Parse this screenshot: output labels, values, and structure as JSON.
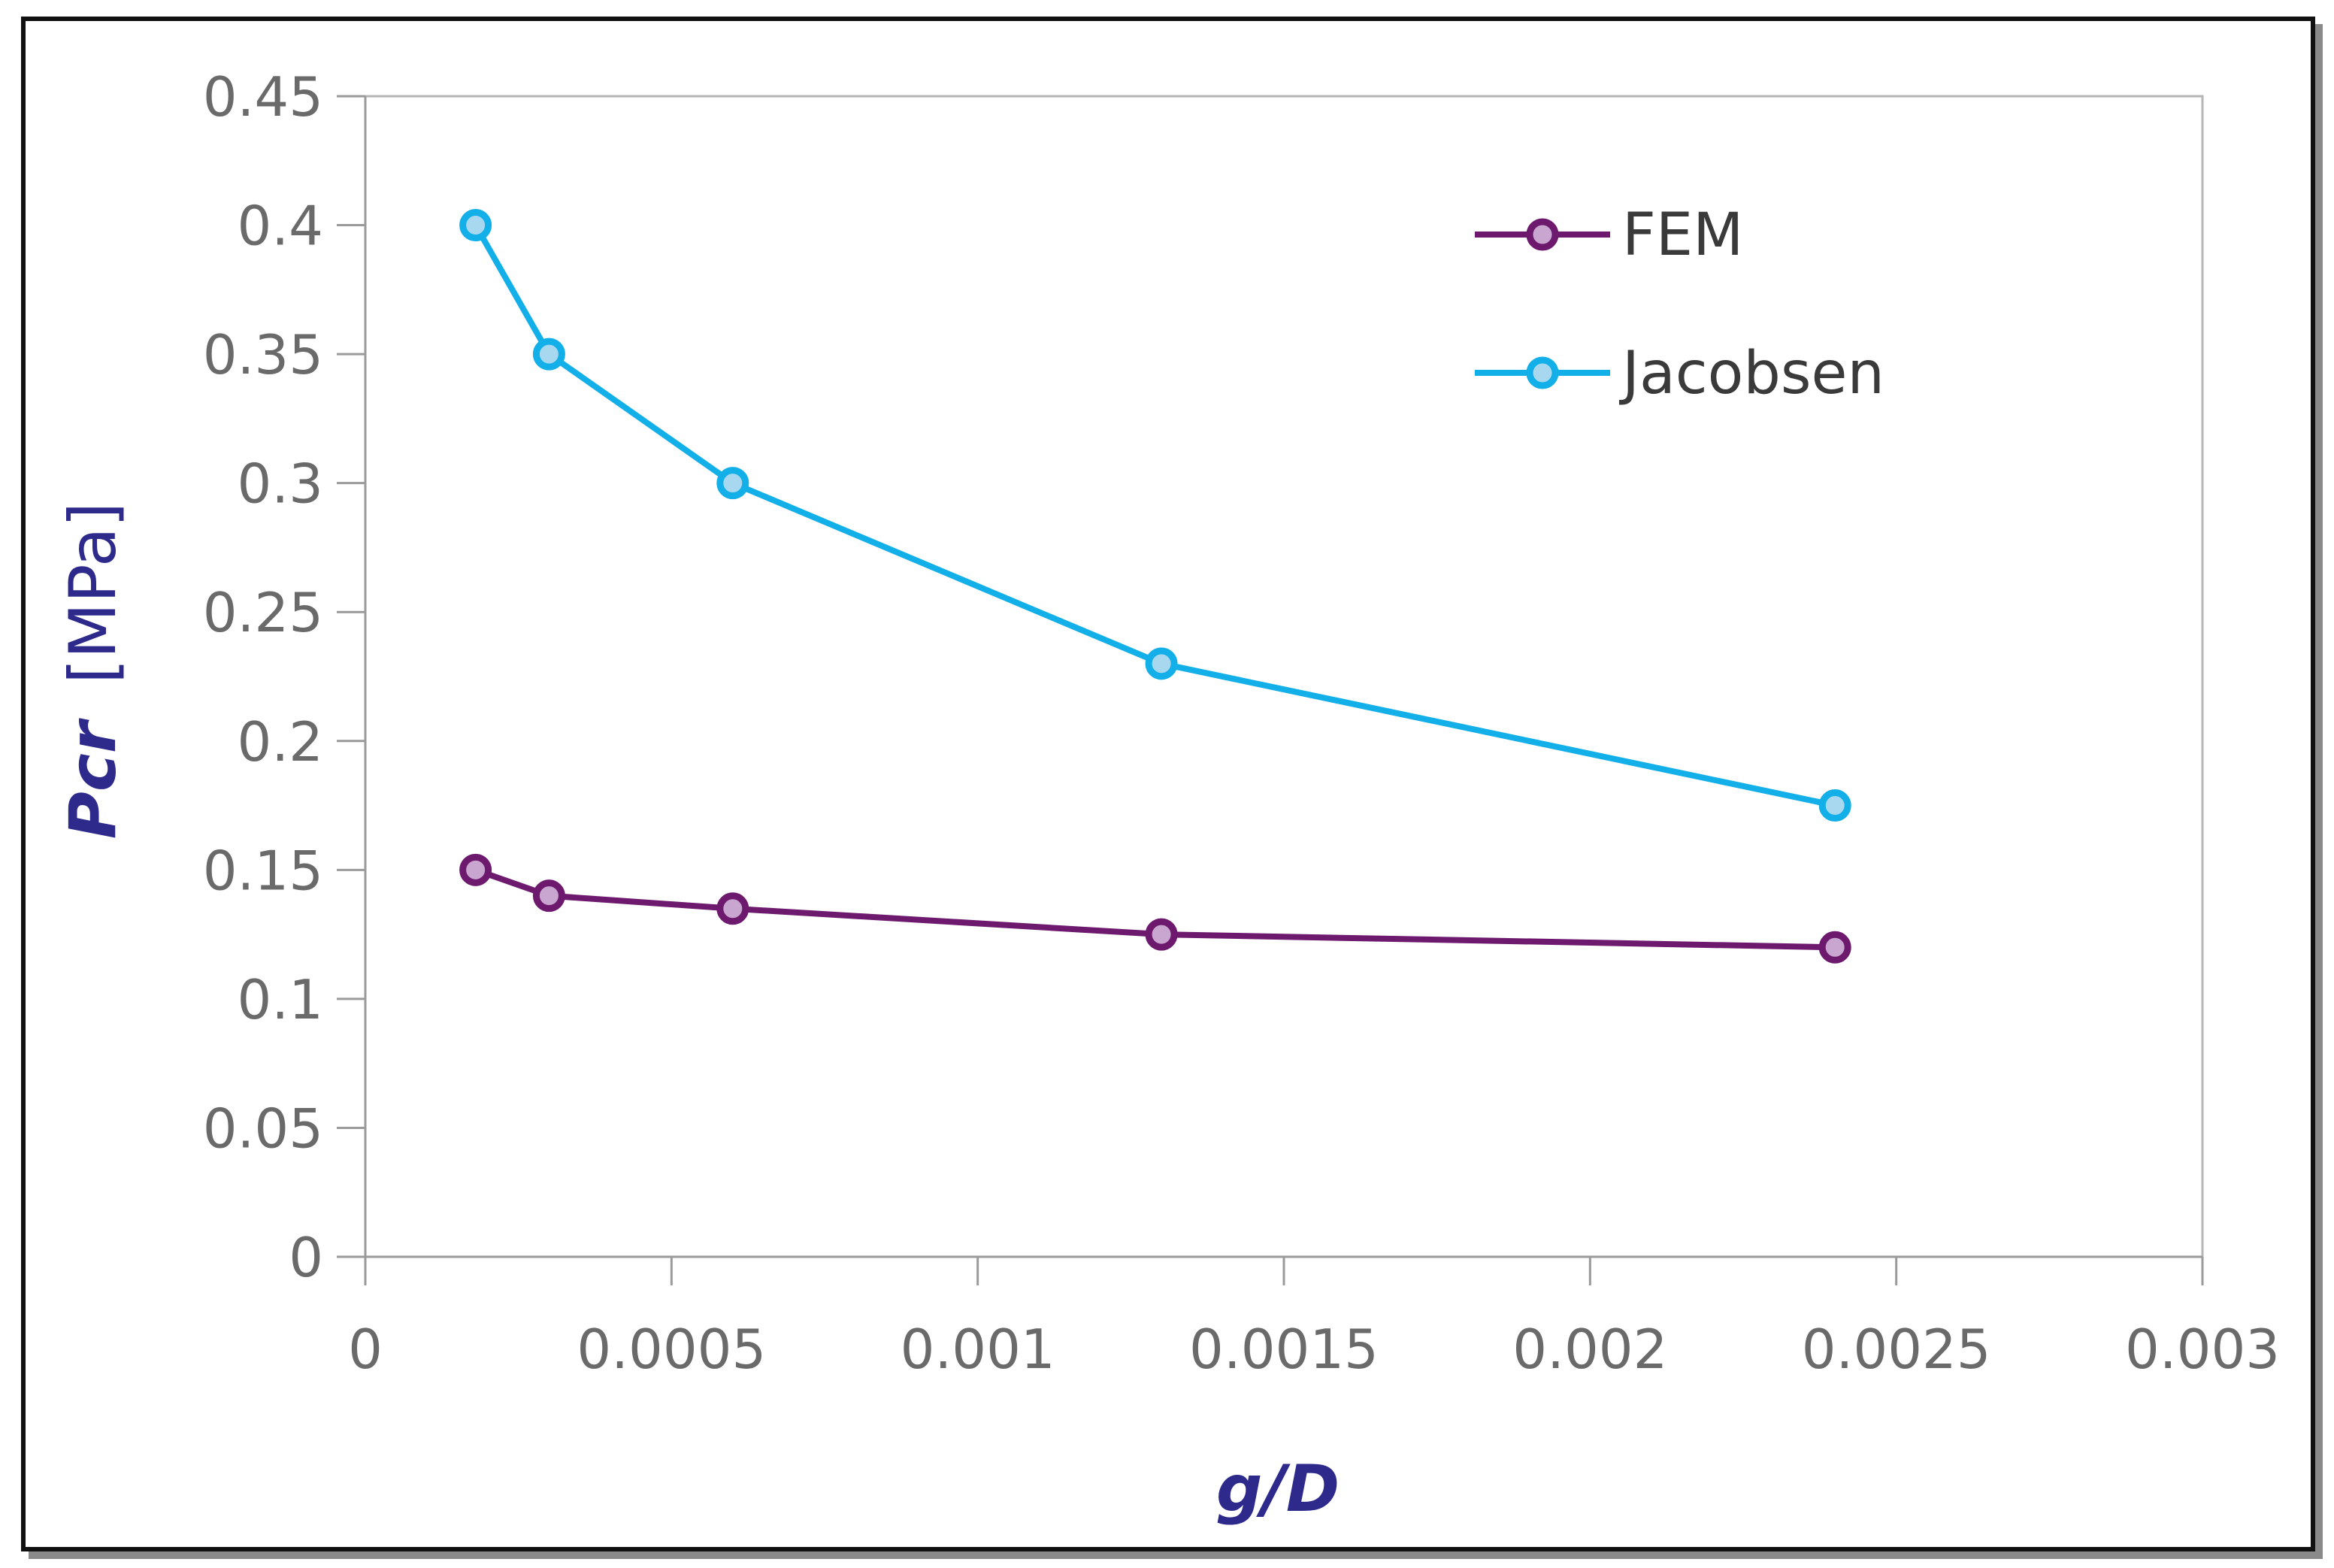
{
  "chart_data": {
    "type": "line",
    "title": "",
    "xlabel_italic": "g/D",
    "ylabel_italic": "Pcr",
    "ylabel_unit": "[MPa]",
    "xlim": [
      0,
      0.003
    ],
    "ylim": [
      0,
      0.45
    ],
    "x_ticks": [
      0,
      0.0005,
      0.001,
      0.0015,
      0.002,
      0.0025,
      0.003
    ],
    "x_tick_labels": [
      "0",
      "0.0005",
      "0.001",
      "0.0015",
      "0.002",
      "0.0025",
      "0.003"
    ],
    "y_ticks": [
      0,
      0.05,
      0.1,
      0.15,
      0.2,
      0.25,
      0.3,
      0.35,
      0.4,
      0.45
    ],
    "y_tick_labels": [
      "0",
      "0.05",
      "0.1",
      "0.15",
      "0.2",
      "0.25",
      "0.3",
      "0.35",
      "0.4",
      "0.45"
    ],
    "grid": false,
    "legend_position": "top-right",
    "series": [
      {
        "name": "FEM",
        "color": "#6d1a6e",
        "marker_fill": "#c9a6cf",
        "x": [
          0.00018,
          0.0003,
          0.0006,
          0.0013,
          0.0024
        ],
        "y": [
          0.15,
          0.14,
          0.135,
          0.125,
          0.12
        ]
      },
      {
        "name": "Jacobsen",
        "color": "#13afe8",
        "marker_fill": "#a8d8ef",
        "x": [
          0.00018,
          0.0003,
          0.0006,
          0.0013,
          0.0024
        ],
        "y": [
          0.4,
          0.35,
          0.3,
          0.23,
          0.175
        ]
      }
    ],
    "axis_title_color": "#2e2a8c",
    "axis_color": "#9a9a9a"
  }
}
